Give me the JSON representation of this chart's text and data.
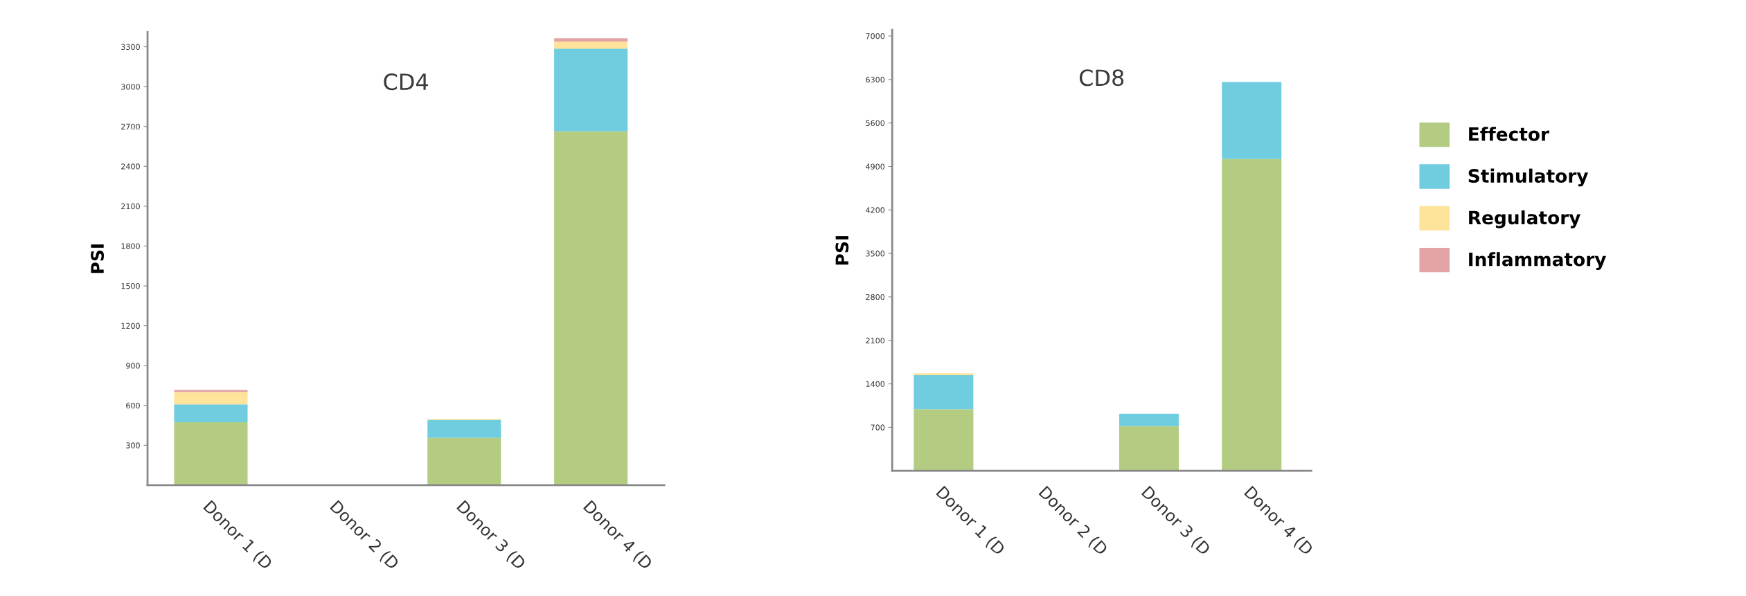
{
  "chart_data": [
    {
      "type": "bar",
      "title": "CD4",
      "ylabel": "PSI",
      "stacked": true,
      "legend": false,
      "categories": [
        "Donor 1 (D",
        "Donor 2 (D",
        "Donor 3 (D",
        "Donor 4 (D"
      ],
      "ylim": [
        0,
        3410
      ],
      "yticks": [
        300,
        600,
        900,
        1200,
        1500,
        1800,
        2100,
        2400,
        2700,
        3000,
        3300
      ],
      "series": [
        {
          "color": "#b3cc82",
          "values": [
            474,
            0,
            356,
            2663
          ]
        },
        {
          "color": "#70cde0",
          "values": [
            133,
            0,
            136,
            623
          ]
        },
        {
          "color": "#fde49a",
          "values": [
            94,
            0,
            8,
            54
          ]
        },
        {
          "color": "#e3a4a8",
          "values": [
            16,
            0,
            0,
            24
          ]
        }
      ]
    },
    {
      "type": "bar",
      "title": "CD8",
      "ylabel": "PSI",
      "stacked": true,
      "legend": "right",
      "categories": [
        "Donor 1 (D",
        "Donor 2 (D",
        "Donor 3 (D",
        "Donor 4 (D"
      ],
      "ylim": [
        0,
        7100
      ],
      "yticks": [
        700,
        1400,
        2100,
        2800,
        3500,
        4200,
        4900,
        5600,
        6300,
        7000
      ],
      "series": [
        {
          "name": "Effector",
          "color": "#b3cc82",
          "values": [
            990,
            0,
            720,
            5020
          ]
        },
        {
          "name": "Stimulatory",
          "color": "#70cde0",
          "values": [
            550,
            0,
            200,
            1240
          ]
        },
        {
          "name": "Regulatory",
          "color": "#fde49a",
          "values": [
            30,
            0,
            0,
            0
          ]
        },
        {
          "name": "Inflammatory",
          "color": "#e3a4a8",
          "values": [
            0,
            0,
            0,
            0
          ]
        }
      ]
    }
  ]
}
